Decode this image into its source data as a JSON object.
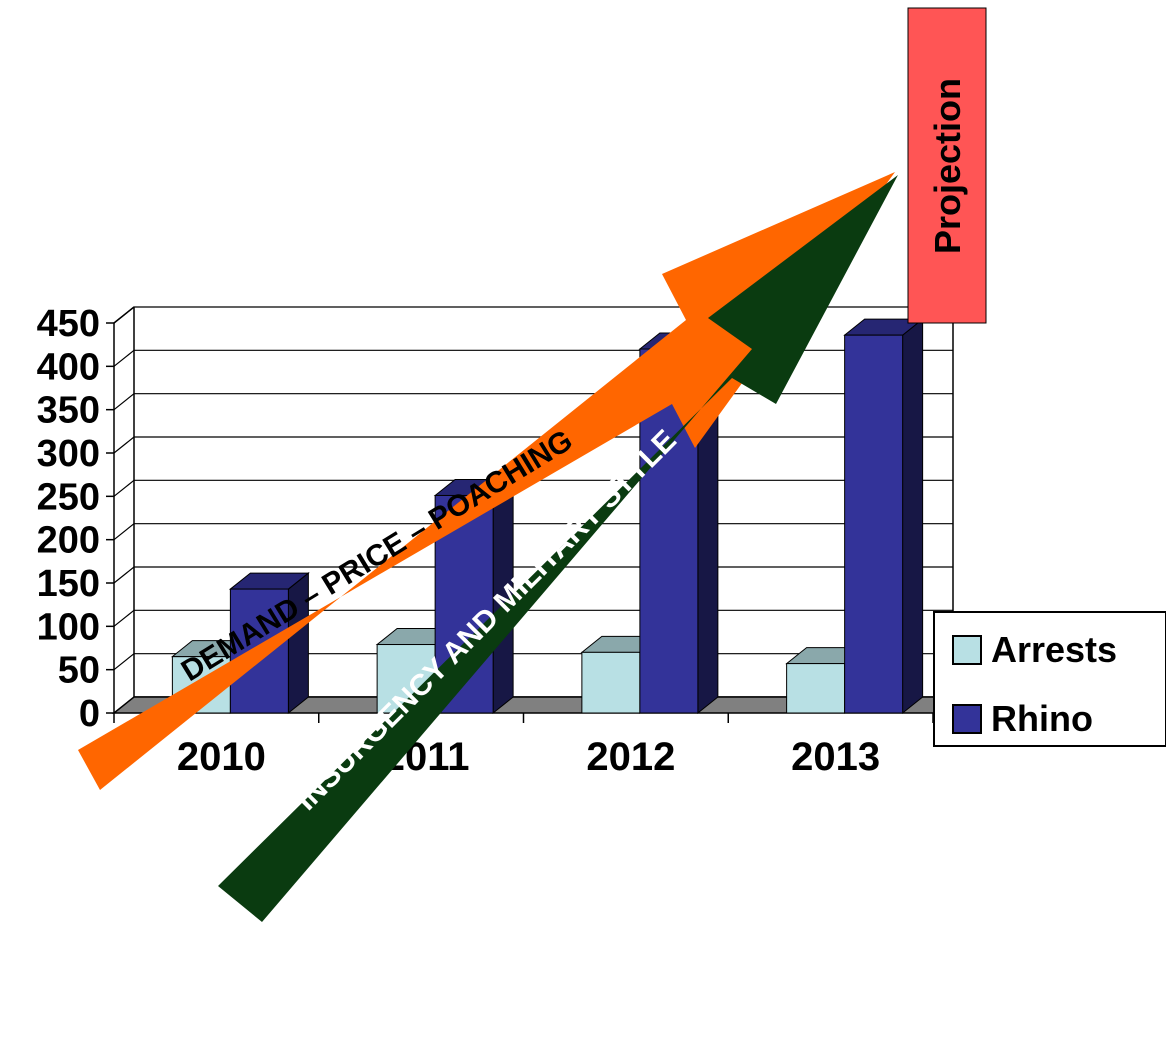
{
  "chart_data": {
    "type": "bar",
    "categories": [
      "2010",
      "2011",
      "2012",
      "2013"
    ],
    "series": [
      {
        "name": "Arrests",
        "values": [
          65,
          79,
          70,
          57
        ]
      },
      {
        "name": "Rhino",
        "values": [
          143,
          251,
          420,
          436
        ]
      }
    ],
    "ylim": [
      0,
      450
    ],
    "yticks": [
      "0",
      "50",
      "100",
      "150",
      "200",
      "250",
      "300",
      "350",
      "400",
      "450"
    ],
    "grid": true,
    "legend_placement": "right",
    "three_d": true,
    "colors": {
      "Arrests": "#b8e0e4",
      "Rhino": "#333399",
      "floor": "#808080",
      "orange_arrow": "#ff6600",
      "green_arrow": "#0a3b10",
      "projection_box": "#ff5555"
    },
    "annotations": {
      "orange_arrow": "DEMAND – PRICE  –  POACHING",
      "green_arrow": "INSURGENCY AND MILITARY STYLE",
      "projection_label": "Projection"
    }
  }
}
